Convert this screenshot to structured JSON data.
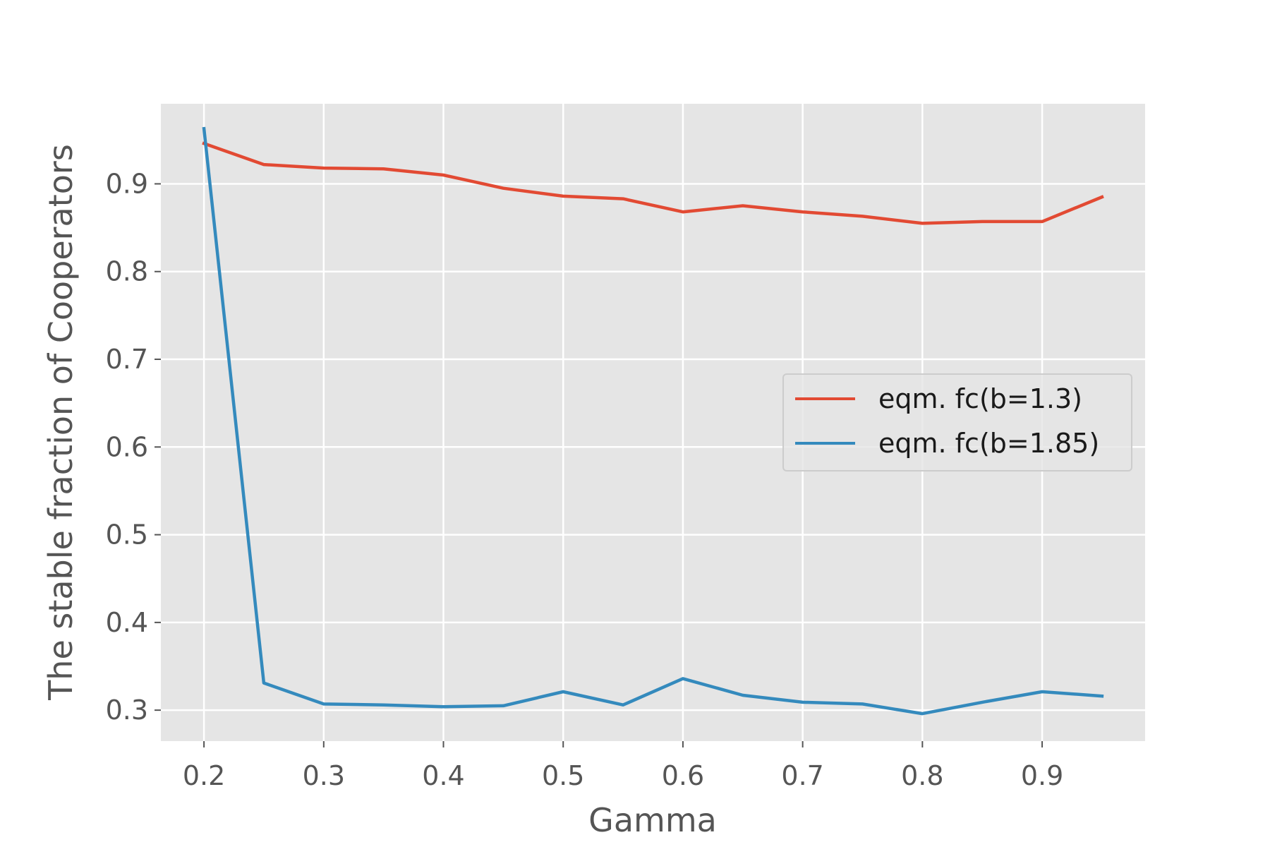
{
  "chart_data": {
    "type": "line",
    "title": "",
    "xlabel": "Gamma",
    "ylabel": "The stable fraction of Cooperators",
    "xlim": [
      0.164,
      0.986
    ],
    "ylim": [
      0.2647,
      0.9913
    ],
    "xticks": [
      "0.2",
      "0.3",
      "0.4",
      "0.5",
      "0.6",
      "0.7",
      "0.8",
      "0.9"
    ],
    "yticks": [
      "0.3",
      "0.4",
      "0.5",
      "0.6",
      "0.7",
      "0.8",
      "0.9"
    ],
    "grid": true,
    "legend_position": "center-right",
    "x": [
      0.2,
      0.25,
      0.3,
      0.35,
      0.4,
      0.45,
      0.5,
      0.55,
      0.6,
      0.65,
      0.7,
      0.75,
      0.8,
      0.85,
      0.9,
      0.95
    ],
    "series": [
      {
        "name": "eqm. fc(b=1.3)",
        "color": "#E24A33",
        "values": [
          0.946,
          0.922,
          0.918,
          0.917,
          0.91,
          0.895,
          0.886,
          0.883,
          0.868,
          0.875,
          0.868,
          0.863,
          0.855,
          0.857,
          0.857,
          0.885
        ]
      },
      {
        "name": "eqm. fc(b=1.85)",
        "color": "#348ABD",
        "values": [
          0.963,
          0.331,
          0.307,
          0.306,
          0.304,
          0.305,
          0.321,
          0.306,
          0.336,
          0.317,
          0.309,
          0.307,
          0.296,
          0.309,
          0.321,
          0.316
        ]
      }
    ]
  }
}
